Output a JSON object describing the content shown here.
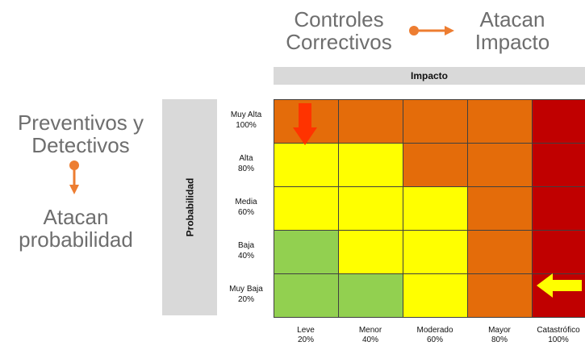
{
  "titles": {
    "controles_line1": "Controles",
    "controles_line2": "Correctivos",
    "atacan_impacto_line1": "Atacan",
    "atacan_impacto_line2": "Impacto",
    "preventivos_line1": "Preventivos y",
    "preventivos_line2": "Detectivos",
    "atacan_prob_line1": "Atacan",
    "atacan_prob_line2": "probabilidad"
  },
  "axes": {
    "x_header": "Impacto",
    "y_header": "Probabilidad"
  },
  "rows": [
    {
      "label": "Muy Alta",
      "pct": "100%"
    },
    {
      "label": "Alta",
      "pct": "80%"
    },
    {
      "label": "Media",
      "pct": "60%"
    },
    {
      "label": "Baja",
      "pct": "40%"
    },
    {
      "label": "Muy Baja",
      "pct": "20%"
    }
  ],
  "columns": [
    {
      "label": "Leve",
      "pct": "20%"
    },
    {
      "label": "Menor",
      "pct": "40%"
    },
    {
      "label": "Moderado",
      "pct": "60%"
    },
    {
      "label": "Mayor",
      "pct": "80%"
    },
    {
      "label": "Catastrófico",
      "pct": "100%"
    }
  ],
  "colors": {
    "green": "#92d050",
    "yellow": "#ffff00",
    "orange": "#e46c0a",
    "red": "#c00000",
    "accent_arrow": "#ed7d31",
    "red_arrow": "#ff3300",
    "yellow_arrow": "#ffff00"
  },
  "matrix": [
    [
      "orange",
      "orange",
      "orange",
      "orange",
      "red"
    ],
    [
      "yellow",
      "yellow",
      "orange",
      "orange",
      "red"
    ],
    [
      "yellow",
      "yellow",
      "yellow",
      "orange",
      "red"
    ],
    [
      "green",
      "yellow",
      "yellow",
      "orange",
      "red"
    ],
    [
      "green",
      "green",
      "yellow",
      "orange",
      "red"
    ]
  ]
}
